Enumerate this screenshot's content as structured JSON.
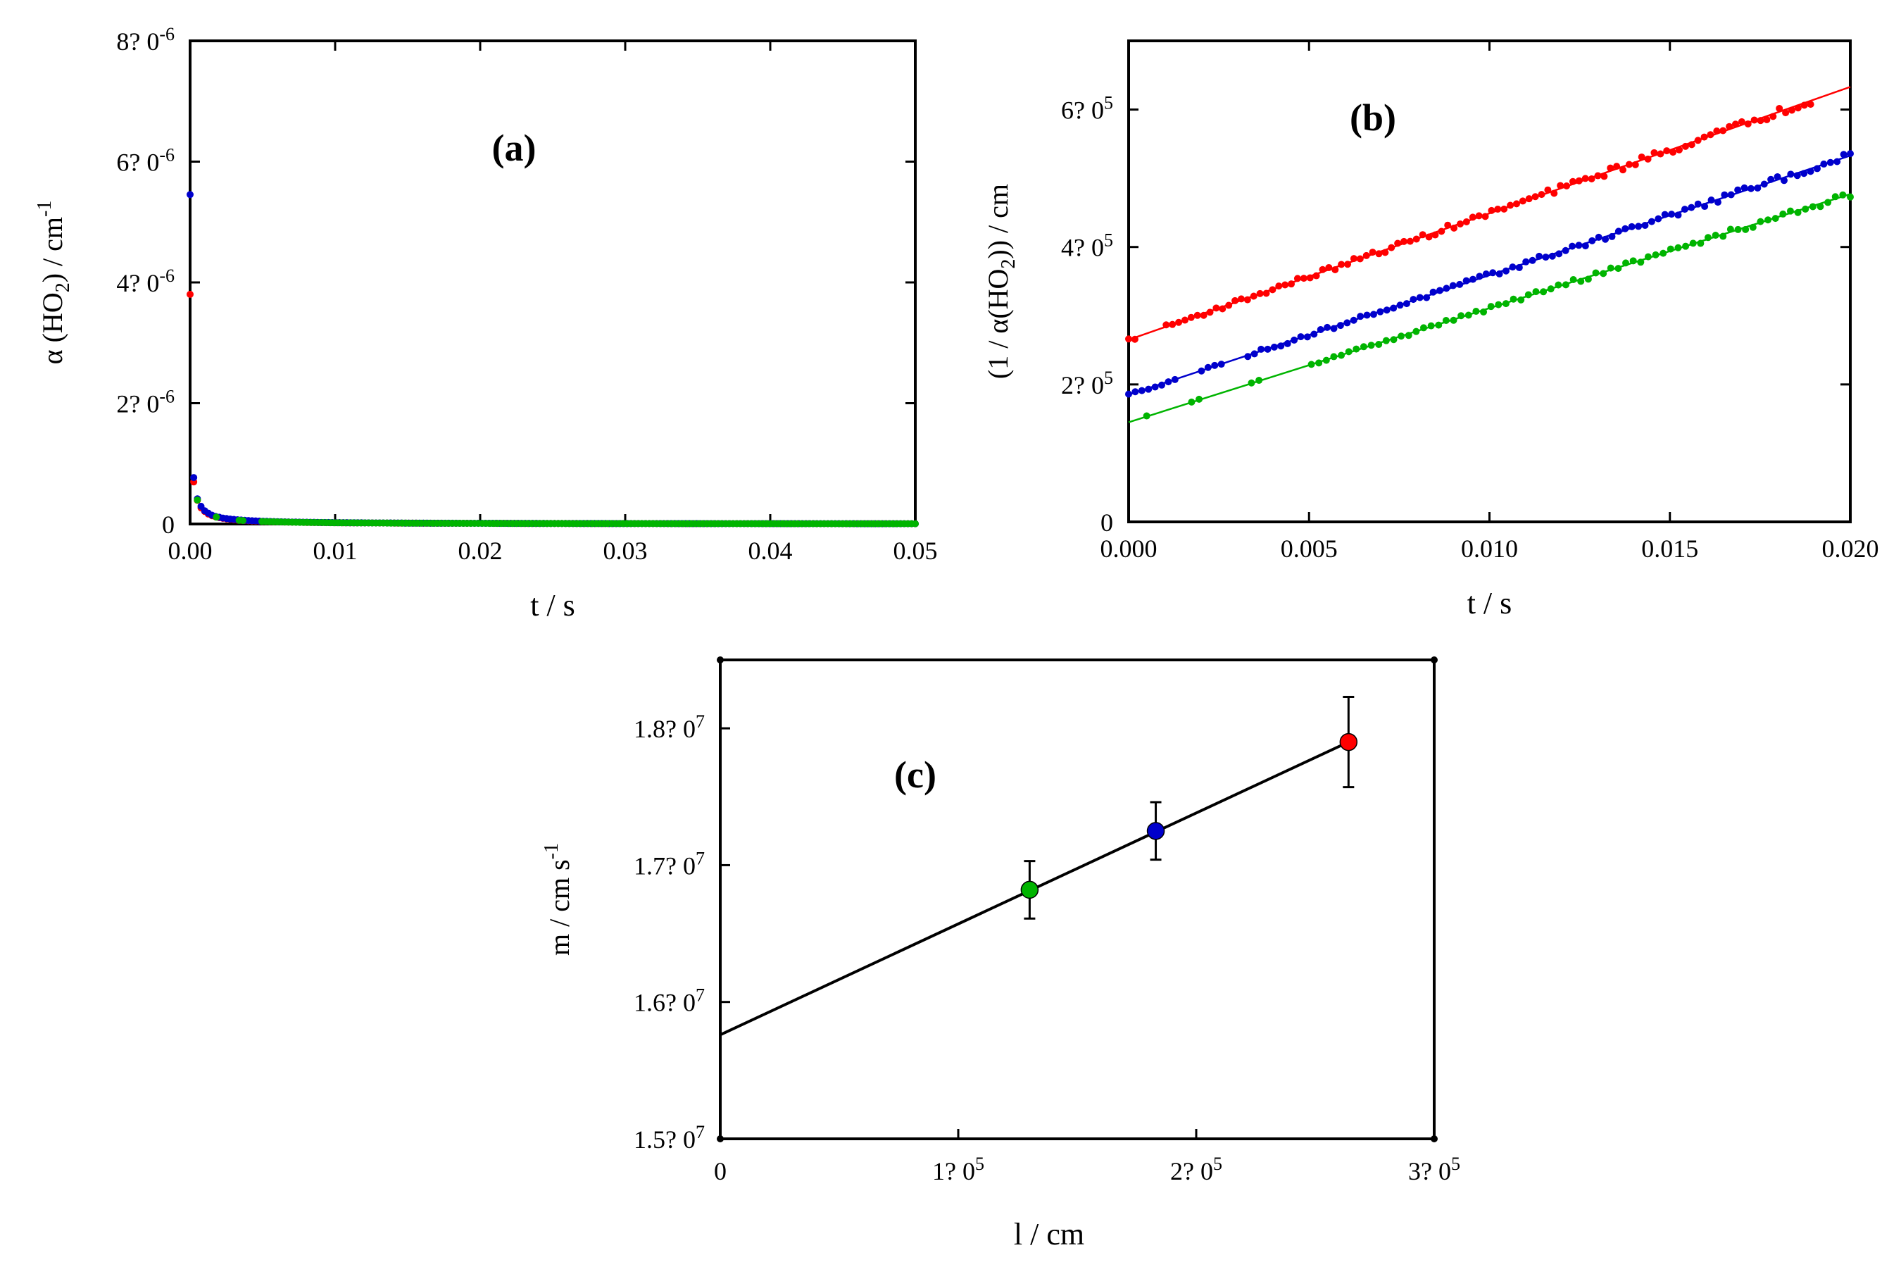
{
  "colors": {
    "red": "#ff0000",
    "blue": "#0000cc",
    "green": "#00b400",
    "axis": "#000000"
  },
  "chart_data": [
    {
      "id": "a",
      "type": "scatter",
      "label": "(a)",
      "xlabel": "t / s",
      "ylabel": {
        "pre": "α (HO",
        "sub": "2",
        "post": ") / cm",
        "sup": "-1"
      },
      "xlim": [
        0,
        0.05
      ],
      "ylim": [
        0,
        8e-06
      ],
      "xticks": [
        0,
        0.01,
        0.02,
        0.03,
        0.04,
        0.05
      ],
      "xtick_labels": [
        "0.00",
        "0.01",
        "0.02",
        "0.03",
        "0.04",
        "0.05"
      ],
      "yticks": [
        0,
        2e-06,
        4e-06,
        6e-06,
        8e-06
      ],
      "ytick_labels": [
        {
          "base": "0",
          "exp": ""
        },
        {
          "base": "2? 0",
          "exp": "-6"
        },
        {
          "base": "4? 0",
          "exp": "-6"
        },
        {
          "base": "6? 0",
          "exp": "-6"
        },
        {
          "base": "8? 0",
          "exp": "-6"
        }
      ],
      "series": [
        {
          "name": "red",
          "color": "#ff0000",
          "model": "recip",
          "k": 4600000000.0,
          "inv0": 265000.0,
          "tstart": 0,
          "tend": 0.05,
          "n": 200,
          "noise": 0.03,
          "gaps": [
            [
              0.0195,
              0.021
            ]
          ]
        },
        {
          "name": "blue",
          "color": "#0000cc",
          "model": "recip",
          "k": 4350000000.0,
          "inv0": 185000.0,
          "tstart": 0,
          "tend": 0.05,
          "n": 200,
          "noise": 0.03,
          "gaps": []
        },
        {
          "name": "green",
          "color": "#00b400",
          "model": "recip",
          "k": 4800000000.0,
          "inv0": 145000.0,
          "tstart": 0.0005,
          "tend": 0.05,
          "n": 190,
          "noise": 0.03,
          "gaps": [
            [
              0.0007,
              0.0017
            ],
            [
              0.002,
              0.0033
            ],
            [
              0.0037,
              0.0047
            ]
          ]
        }
      ]
    },
    {
      "id": "b",
      "type": "scatter",
      "label": "(b)",
      "xlabel": "t / s",
      "ylabel": {
        "pre": "(1 / α(HO",
        "sub": "2",
        "post": ")) / cm",
        "sup": ""
      },
      "xlim": [
        0,
        0.02
      ],
      "ylim": [
        0,
        700000.0
      ],
      "xticks": [
        0,
        0.005,
        0.01,
        0.015,
        0.02
      ],
      "xtick_labels": [
        "0.000",
        "0.005",
        "0.010",
        "0.015",
        "0.020"
      ],
      "yticks": [
        0,
        200000.0,
        400000.0,
        600000.0
      ],
      "ytick_labels": [
        {
          "base": "0",
          "exp": ""
        },
        {
          "base": "2? 0",
          "exp": "5"
        },
        {
          "base": "4? 0",
          "exp": "5"
        },
        {
          "base": "6? 0",
          "exp": "5"
        }
      ],
      "series": [
        {
          "name": "red",
          "color": "#ff0000",
          "model": "linear",
          "intercept": 265000.0,
          "slope": 18400000.0,
          "tstart": 0,
          "tend": 0.0189,
          "n": 110,
          "noise": 0.012,
          "gaps": [
            [
              0.0002,
              0.0009
            ]
          ],
          "fit": [
            0,
            0.02
          ]
        },
        {
          "name": "blue",
          "color": "#0000cc",
          "model": "linear",
          "intercept": 185000.0,
          "slope": 17400000.0,
          "tstart": 0,
          "tend": 0.02,
          "n": 110,
          "noise": 0.012,
          "gaps": [
            [
              0.0013,
              0.002
            ],
            [
              0.0027,
              0.0033
            ]
          ],
          "fit": [
            0,
            0.02
          ]
        },
        {
          "name": "green",
          "color": "#00b400",
          "model": "linear",
          "intercept": 145000.0,
          "slope": 16600000.0,
          "tstart": 0.0005,
          "tend": 0.02,
          "n": 95,
          "noise": 0.012,
          "gaps": [
            [
              0.0007,
              0.0017
            ],
            [
              0.002,
              0.0034
            ],
            [
              0.0037,
              0.0049
            ]
          ],
          "fit": [
            0,
            0.02
          ]
        }
      ]
    },
    {
      "id": "c",
      "type": "scatter",
      "label": "(c)",
      "xlabel": "l / cm",
      "ylabel": {
        "pre": "m / cm s",
        "sub": "",
        "post": "",
        "sup": "-1"
      },
      "xlim": [
        0,
        300000.0
      ],
      "ylim": [
        15000000.0,
        18500000.0
      ],
      "xticks": [
        0,
        100000.0,
        200000.0,
        300000.0
      ],
      "xtick_labels": [
        {
          "base": "0",
          "exp": ""
        },
        {
          "base": "1? 0",
          "exp": "5"
        },
        {
          "base": "2? 0",
          "exp": "5"
        },
        {
          "base": "3? 0",
          "exp": "5"
        }
      ],
      "yticks": [
        15000000.0,
        16000000.0,
        17000000.0,
        18000000.0
      ],
      "ytick_labels": [
        {
          "base": "1.5? 0",
          "exp": "7"
        },
        {
          "base": "1.6? 0",
          "exp": "7"
        },
        {
          "base": "1.7? 0",
          "exp": "7"
        },
        {
          "base": "1.8? 0",
          "exp": "7"
        }
      ],
      "points": [
        {
          "name": "green",
          "color": "#00b400",
          "x": 130000.0,
          "y": 16820000.0,
          "err": 210000.0
        },
        {
          "name": "blue",
          "color": "#0000cc",
          "x": 183000.0,
          "y": 17250000.0,
          "err": 210000.0
        },
        {
          "name": "red",
          "color": "#ff0000",
          "x": 264000.0,
          "y": 17900000.0,
          "err": 330000.0
        }
      ],
      "fit": {
        "x0": 0,
        "y0": 15760000.0,
        "x1": 264000.0,
        "y1": 17900000.0
      }
    }
  ]
}
